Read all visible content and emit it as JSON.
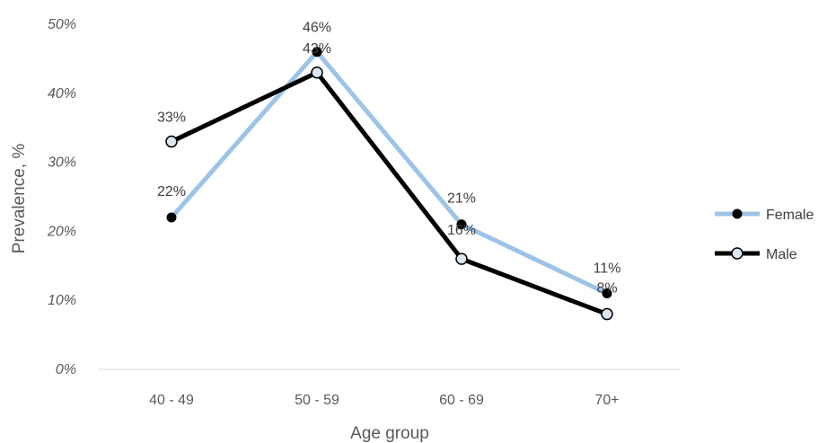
{
  "chart_data": {
    "type": "line",
    "categories": [
      "40 - 49",
      "50 - 59",
      "60 - 69",
      "70+"
    ],
    "series": [
      {
        "name": "Female",
        "values": [
          22,
          46,
          21,
          11
        ],
        "labels": [
          "22%",
          "46%",
          "21%",
          "11%"
        ],
        "line_color": "#9dc3e6",
        "marker_fill": "#000000"
      },
      {
        "name": "Male",
        "values": [
          33,
          43,
          16,
          8
        ],
        "labels": [
          "33%",
          "43%",
          "16%",
          "8%"
        ],
        "line_color": "#000000",
        "marker_fill": "#dde5f1"
      }
    ],
    "xlabel": "Age group",
    "ylabel": "Prevalence, %",
    "ylim": [
      0,
      50
    ],
    "yticks": [
      0,
      10,
      20,
      30,
      40,
      50
    ],
    "ytick_labels": [
      "0%",
      "10%",
      "20%",
      "30%",
      "40%",
      "50%"
    ],
    "grid": false,
    "legend_position": "right"
  }
}
